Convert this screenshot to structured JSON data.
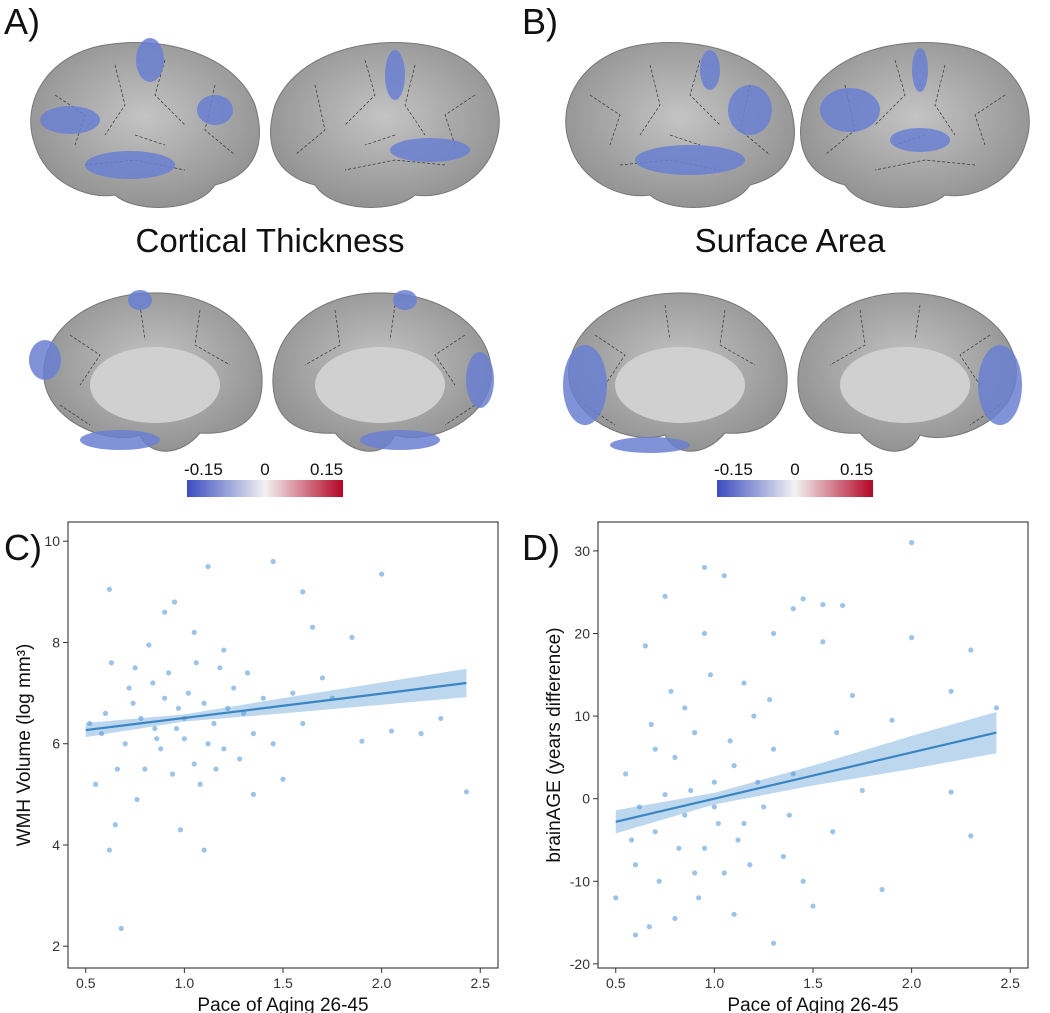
{
  "panels": {
    "a": "A)",
    "b": "B)",
    "c": "C)",
    "d": "D)"
  },
  "brain_titles": [
    "Cortical Thickness",
    "Surface Area"
  ],
  "colorbars": [
    {
      "lim": [
        -0.19,
        0.19
      ],
      "ticks": [
        -0.15,
        0,
        0.15
      ],
      "colors": [
        "#3b4cc0",
        "#f2f2f2",
        "#b40426"
      ]
    },
    {
      "lim": [
        -0.19,
        0.19
      ],
      "ticks": [
        -0.15,
        0,
        0.15
      ],
      "colors": [
        "#3b4cc0",
        "#f2f2f2",
        "#b40426"
      ]
    }
  ],
  "chart_data": [
    {
      "type": "scatter",
      "x_label": "Pace of Aging 26-45",
      "y_label": "WMH Volume (log mm³)",
      "color": "#5b9bd5",
      "xlim": [
        0.41,
        2.59
      ],
      "ylim": [
        1.57,
        10.38
      ],
      "xticks": [
        0.5,
        {
          "value": 1,
          "label": "1.0"
        },
        1.5,
        {
          "value": 2,
          "label": "2.0"
        },
        2.5
      ],
      "yticks": [
        2,
        4,
        6,
        8,
        10
      ],
      "x": [
        0.68,
        0.62,
        1.1,
        0.62,
        1.12,
        1.45,
        2.0,
        2.43,
        2.3,
        2.2,
        2.05,
        1.6,
        1.85,
        1.65,
        0.98,
        0.65,
        0.55,
        1.9,
        1.75,
        1.5,
        1.35,
        0.82,
        0.95,
        0.9,
        1.05,
        1.2,
        0.75,
        0.6,
        0.7,
        0.8,
        0.85,
        0.9,
        1.0,
        1.05,
        1.1,
        1.15,
        1.2,
        1.25,
        1.3,
        1.35,
        0.72,
        0.78,
        0.88,
        0.92,
        0.97,
        1.02,
        1.08,
        1.18,
        1.28,
        1.4,
        1.55,
        1.6,
        0.58,
        0.66,
        0.76,
        0.84,
        0.94,
        1.0,
        1.12,
        1.22,
        1.32,
        1.45,
        0.52,
        0.63,
        0.86,
        1.06,
        0.74,
        0.96,
        1.16,
        1.7
      ],
      "values": [
        2.35,
        3.9,
        3.9,
        9.05,
        9.5,
        9.6,
        9.35,
        5.05,
        6.5,
        6.2,
        6.25,
        9.0,
        8.1,
        8.3,
        4.3,
        4.4,
        5.2,
        6.05,
        6.9,
        5.3,
        5.0,
        7.95,
        8.8,
        8.6,
        8.2,
        7.85,
        7.5,
        6.6,
        6.0,
        5.5,
        6.3,
        6.9,
        6.1,
        5.6,
        6.8,
        6.4,
        5.9,
        7.1,
        6.6,
        6.2,
        7.1,
        6.5,
        5.9,
        7.4,
        6.7,
        7.0,
        5.2,
        7.5,
        5.7,
        6.9,
        7.0,
        6.4,
        6.2,
        5.5,
        4.9,
        7.2,
        5.4,
        6.5,
        6.0,
        6.7,
        7.4,
        6.0,
        6.4,
        7.6,
        6.1,
        7.6,
        6.8,
        6.3,
        5.5,
        7.3
      ],
      "fit": {
        "x": [
          0.5,
          1.0,
          1.5,
          2.0,
          2.43
        ],
        "y": [
          6.27,
          6.51,
          6.75,
          6.99,
          7.2
        ],
        "lower": [
          6.13,
          6.44,
          6.6,
          6.77,
          6.92
        ],
        "upper": [
          6.41,
          6.58,
          6.9,
          7.21,
          7.48
        ]
      }
    },
    {
      "type": "scatter",
      "x_label": "Pace of Aging 26-45",
      "y_label": "brainAGE (years difference)",
      "color": "#5b9bd5",
      "xlim": [
        0.41,
        2.59
      ],
      "ylim": [
        -20.5,
        33.5
      ],
      "xticks": [
        0.5,
        {
          "value": 1,
          "label": "1.0"
        },
        1.5,
        {
          "value": 2,
          "label": "2.0"
        },
        2.5
      ],
      "yticks": [
        -20,
        -10,
        0,
        10,
        20,
        30
      ],
      "x": [
        2.0,
        0.95,
        1.05,
        0.75,
        1.45,
        1.55,
        1.65,
        1.4,
        2.3,
        2.0,
        2.2,
        2.43,
        2.3,
        2.2,
        1.85,
        1.3,
        0.6,
        0.67,
        0.5,
        0.95,
        0.65,
        1.3,
        1.55,
        1.7,
        1.9,
        1.5,
        1.1,
        0.8,
        0.6,
        0.7,
        0.75,
        0.8,
        0.85,
        0.9,
        0.95,
        1.0,
        1.05,
        1.1,
        1.15,
        1.2,
        1.25,
        1.3,
        1.35,
        1.4,
        1.45,
        0.55,
        0.62,
        0.68,
        0.72,
        0.78,
        0.82,
        0.88,
        0.92,
        0.98,
        1.02,
        1.08,
        1.12,
        1.18,
        1.22,
        1.28,
        1.38,
        1.6,
        1.62,
        1.75,
        0.58,
        0.7,
        0.85,
        1.0,
        1.15,
        0.9
      ],
      "values": [
        31,
        28,
        27,
        24.5,
        24.2,
        23.5,
        23.4,
        23,
        18,
        19.5,
        13,
        11,
        -4.5,
        0.8,
        -11,
        -17.5,
        -16.5,
        -15.5,
        -12,
        20,
        18.5,
        20,
        19,
        12.5,
        9.5,
        -13,
        -14,
        -14.5,
        -8,
        -4,
        0.5,
        5,
        -2,
        8,
        -6,
        2,
        -9,
        4,
        -3,
        10,
        -1,
        6,
        -7,
        3,
        -10,
        3,
        -1,
        9,
        -10,
        13,
        -6,
        1,
        -12,
        15,
        -3,
        7,
        -5,
        -8,
        2,
        12,
        -2,
        -4,
        8,
        1,
        -5,
        6,
        11,
        -1,
        14,
        -9
      ],
      "fit": {
        "x": [
          0.5,
          1.0,
          1.5,
          2.0,
          2.43
        ],
        "y": [
          -2.8,
          0.0,
          2.8,
          5.6,
          8.0
        ],
        "lower": [
          -4.2,
          -0.7,
          1.6,
          3.6,
          5.5
        ],
        "upper": [
          -1.4,
          0.7,
          4.0,
          7.6,
          10.5
        ]
      }
    }
  ]
}
